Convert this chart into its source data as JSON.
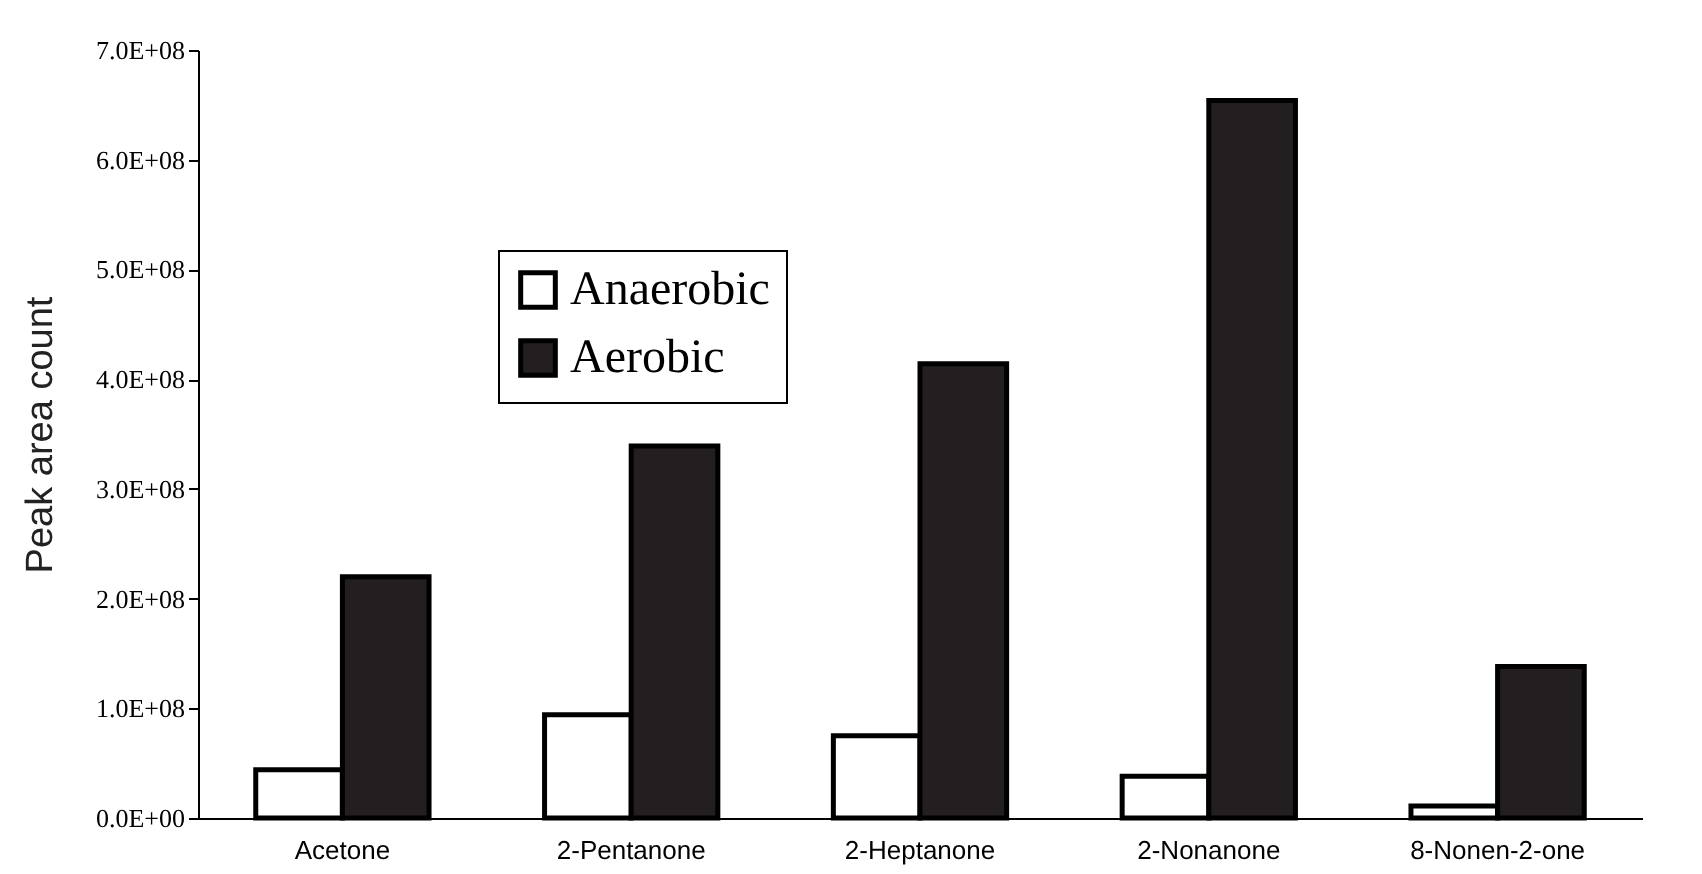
{
  "chart_data": {
    "type": "bar",
    "ylabel": "Peak area count",
    "categories": [
      "Acetone",
      "2-Pentanone",
      "2-Heptanone",
      "2-Nonanone",
      "8-Nonen-2-one"
    ],
    "series": [
      {
        "name": "Anaerobic",
        "color": "#ffffff",
        "values": [
          44000000,
          94000000,
          75000000,
          38000000,
          11000000
        ]
      },
      {
        "name": "Aerobic",
        "color": "#231f20",
        "values": [
          220000000,
          339000000,
          414000000,
          654000000,
          138000000
        ]
      }
    ],
    "ylim": [
      0,
      700000000
    ],
    "yticks": [
      {
        "value": 0,
        "label": "0.0E+00"
      },
      {
        "value": 100000000,
        "label": "1.0E+08"
      },
      {
        "value": 200000000,
        "label": "2.0E+08"
      },
      {
        "value": 300000000,
        "label": "3.0E+08"
      },
      {
        "value": 400000000,
        "label": "4.0E+08"
      },
      {
        "value": 500000000,
        "label": "5.0E+08"
      },
      {
        "value": 600000000,
        "label": "6.0E+08"
      },
      {
        "value": 700000000,
        "label": "7.0E+08"
      }
    ],
    "legend": "top left",
    "grid": false
  }
}
